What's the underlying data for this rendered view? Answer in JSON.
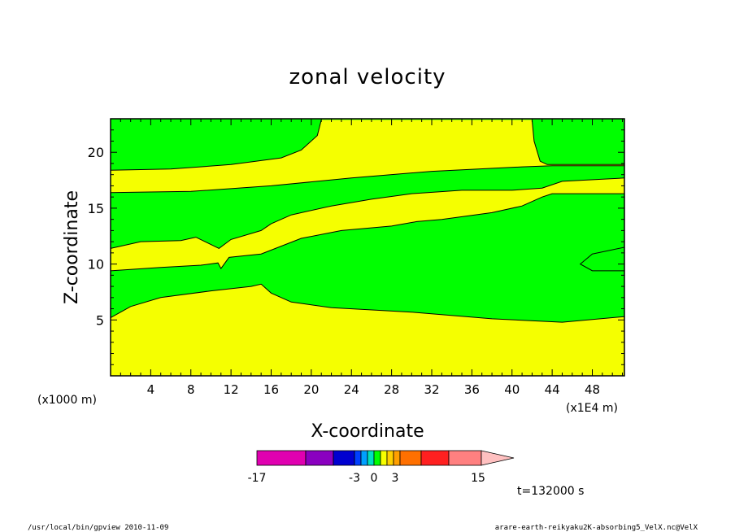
{
  "chart_data": {
    "type": "contour",
    "title": "zonal velocity",
    "xlabel": "X-coordinate",
    "ylabel": "Z-coordinate",
    "x_unit_label": "(x1000 m)",
    "x_scale_label": "(x1E4 m)",
    "x_ticks": [
      "4",
      "8",
      "12",
      "16",
      "20",
      "24",
      "28",
      "32",
      "36",
      "40",
      "44",
      "48"
    ],
    "y_ticks": [
      "5",
      "10",
      "15",
      "20"
    ],
    "xlim": [
      0,
      51.2
    ],
    "ylim": [
      0,
      23
    ],
    "time_label": "t=132000 s",
    "colorbar": {
      "tick_labels": [
        "-17",
        "-3",
        "0",
        "3",
        "15"
      ],
      "colors": [
        "#e000b0",
        "#8a00c0",
        "#0000d0",
        "#0040ff",
        "#00a0ff",
        "#00e0c0",
        "#00ff00",
        "#f8ff00",
        "#ffd000",
        "#ffa000",
        "#ff7000",
        "#ff2020",
        "#ff8080",
        "#ffc0c0"
      ]
    },
    "fill_colors": {
      "low": "#f5ff00",
      "high": "#00ff00"
    },
    "band_boundaries": [
      {
        "name": "boundary-1",
        "points": [
          [
            0,
            5.2
          ],
          [
            2,
            6.2
          ],
          [
            5,
            7.0
          ],
          [
            10,
            7.6
          ],
          [
            14,
            8.0
          ],
          [
            15,
            8.2
          ],
          [
            15.5,
            7.8
          ],
          [
            16,
            7.4
          ],
          [
            18,
            6.6
          ],
          [
            22,
            6.1
          ],
          [
            30,
            5.7
          ],
          [
            38,
            5.1
          ],
          [
            45,
            4.8
          ],
          [
            51.2,
            5.3
          ]
        ]
      },
      {
        "name": "boundary-2",
        "points": [
          [
            0,
            9.4
          ],
          [
            5,
            9.7
          ],
          [
            9,
            9.9
          ],
          [
            10.7,
            10.1
          ],
          [
            11,
            9.6
          ],
          [
            11.8,
            10.6
          ],
          [
            15,
            10.9
          ],
          [
            19,
            12.3
          ],
          [
            23,
            13.0
          ],
          [
            28,
            13.4
          ],
          [
            30.5,
            13.8
          ],
          [
            33,
            14.0
          ],
          [
            38,
            14.6
          ],
          [
            41,
            15.2
          ],
          [
            43,
            16.0
          ],
          [
            44,
            16.3
          ],
          [
            51.2,
            16.3
          ]
        ]
      },
      {
        "name": "boundary-3",
        "points": [
          [
            0,
            11.4
          ],
          [
            3,
            12.0
          ],
          [
            7,
            12.1
          ],
          [
            8.5,
            12.4
          ],
          [
            10.8,
            11.4
          ],
          [
            12,
            12.2
          ],
          [
            15,
            13.0
          ],
          [
            16,
            13.6
          ],
          [
            18,
            14.4
          ],
          [
            22,
            15.2
          ],
          [
            26,
            15.8
          ],
          [
            30,
            16.3
          ],
          [
            35,
            16.6
          ],
          [
            40,
            16.6
          ],
          [
            43,
            16.8
          ],
          [
            45,
            17.4
          ],
          [
            51.2,
            17.7
          ]
        ]
      },
      {
        "name": "boundary-4",
        "points": [
          [
            0,
            16.4
          ],
          [
            8,
            16.5
          ],
          [
            16,
            17.0
          ],
          [
            24,
            17.7
          ],
          [
            32,
            18.3
          ],
          [
            41,
            18.7
          ],
          [
            44,
            18.8
          ],
          [
            51.2,
            18.8
          ]
        ]
      },
      {
        "name": "boundary-5",
        "points": [
          [
            0,
            18.4
          ],
          [
            6,
            18.5
          ],
          [
            12,
            18.9
          ],
          [
            17,
            19.5
          ],
          [
            19,
            20.2
          ],
          [
            20.6,
            21.5
          ],
          [
            21,
            22.9
          ]
        ]
      },
      {
        "name": "boundary-6",
        "points": [
          [
            42,
            22.9
          ],
          [
            42.2,
            21.0
          ],
          [
            42.8,
            19.2
          ],
          [
            43.5,
            18.9
          ],
          [
            51.2,
            18.9
          ]
        ]
      }
    ],
    "bottom_annotation_left": "/usr/local/bin/gpview  2010-11-09",
    "bottom_annotation_right": "arare-earth-reikyaku2K-absorbing5_VelX.nc@VelX"
  }
}
